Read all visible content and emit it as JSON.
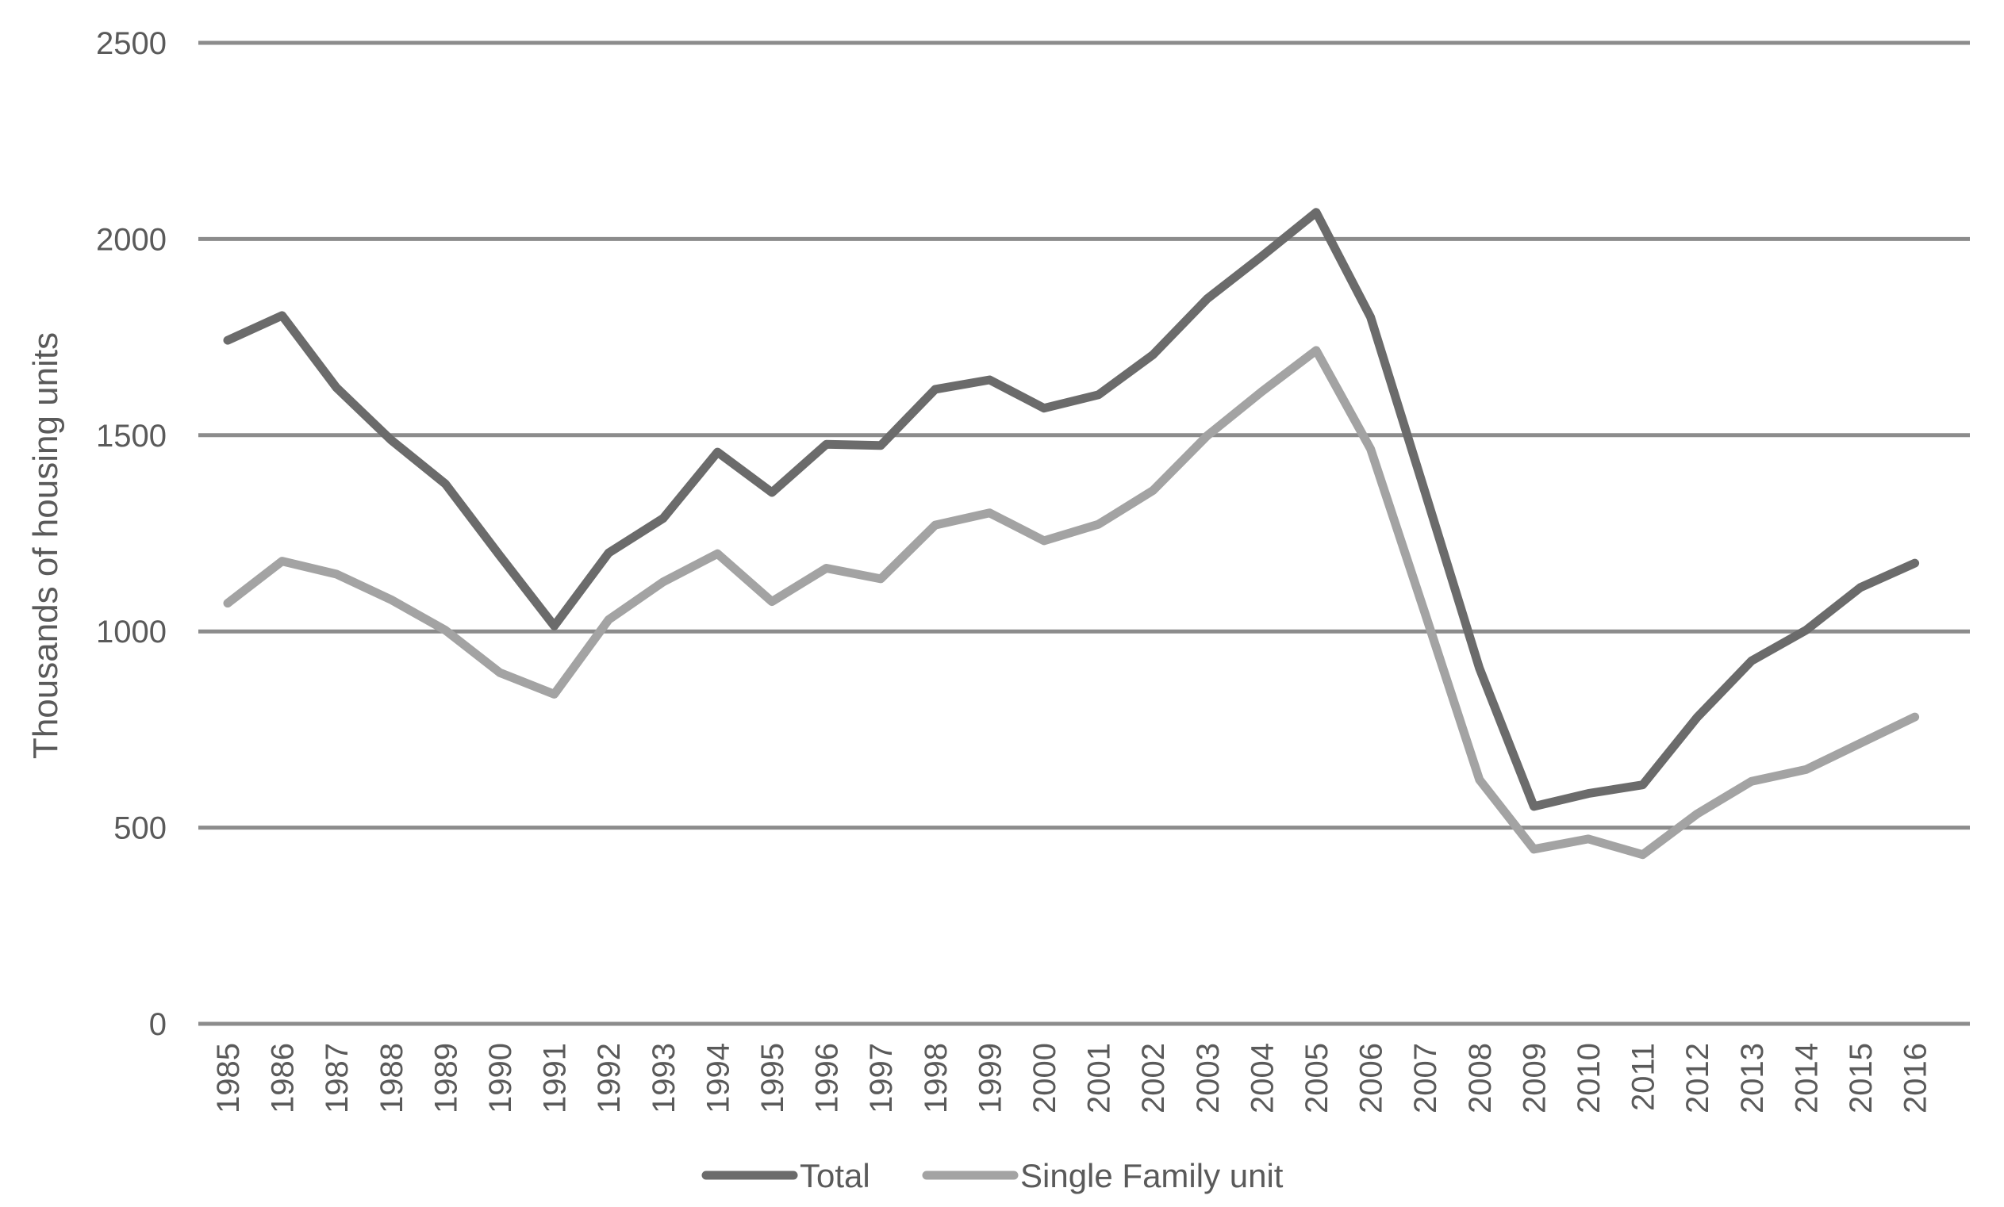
{
  "chart_data": {
    "type": "line",
    "title": "",
    "xlabel": "",
    "ylabel": "Thousands of housing units",
    "x": [
      "1985",
      "1986",
      "1987",
      "1988",
      "1989",
      "1990",
      "1991",
      "1992",
      "1993",
      "1994",
      "1995",
      "1996",
      "1997",
      "1998",
      "1999",
      "2000",
      "2001",
      "2002",
      "2003",
      "2004",
      "2005",
      "2006",
      "2007",
      "2008",
      "2009",
      "2010",
      "2011",
      "2012",
      "2013",
      "2014",
      "2015",
      "2016"
    ],
    "ylim": [
      0,
      2500
    ],
    "yticks": [
      "0",
      "500",
      "1000",
      "1500",
      "2000",
      "2500"
    ],
    "grid": true,
    "legend_position": "bottom",
    "series": [
      {
        "name": "Total",
        "color": "#6b6b6b",
        "values": [
          1742,
          1805,
          1621,
          1488,
          1376,
          1193,
          1014,
          1200,
          1288,
          1457,
          1354,
          1477,
          1474,
          1617,
          1641,
          1569,
          1603,
          1705,
          1848,
          1956,
          2068,
          1801,
          1355,
          906,
          554,
          587,
          609,
          781,
          925,
          1003,
          1112,
          1174
        ]
      },
      {
        "name": "Single Family unit",
        "color": "#a3a3a3",
        "values": [
          1072,
          1179,
          1146,
          1081,
          1003,
          895,
          840,
          1030,
          1126,
          1198,
          1076,
          1161,
          1134,
          1271,
          1302,
          1231,
          1273,
          1359,
          1499,
          1611,
          1716,
          1465,
          1046,
          622,
          445,
          471,
          431,
          535,
          618,
          648,
          715,
          782
        ]
      }
    ]
  }
}
